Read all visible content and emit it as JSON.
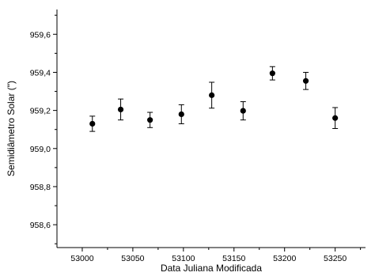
{
  "chart_data": {
    "type": "scatter",
    "title": "",
    "xlabel": "Data Juliana Modificada",
    "ylabel": "Semidiâmetro Solar (\")",
    "xlim": [
      52975,
      53280
    ],
    "ylim": [
      958.48,
      959.73
    ],
    "x_ticks": [
      53000,
      53050,
      53100,
      53150,
      53200,
      53250
    ],
    "x_tick_labels": [
      "53000",
      "53050",
      "53100",
      "53150",
      "53200",
      "53250"
    ],
    "y_ticks": [
      958.6,
      958.8,
      959.0,
      959.2,
      959.4,
      959.6
    ],
    "y_tick_labels": [
      "958,6",
      "958,8",
      "959,0",
      "959,2",
      "959,4",
      "959,6"
    ],
    "grid": false,
    "legend": "none",
    "marker_color": "#000000",
    "series": [
      {
        "x": [
          53010,
          53038,
          53067,
          53098,
          53128,
          53159,
          53188,
          53221,
          53250
        ],
        "y": [
          959.13,
          959.205,
          959.15,
          959.18,
          959.28,
          959.198,
          959.395,
          959.355,
          959.16
        ],
        "error": [
          0.04,
          0.055,
          0.04,
          0.05,
          0.068,
          0.048,
          0.035,
          0.045,
          0.055
        ]
      }
    ]
  }
}
